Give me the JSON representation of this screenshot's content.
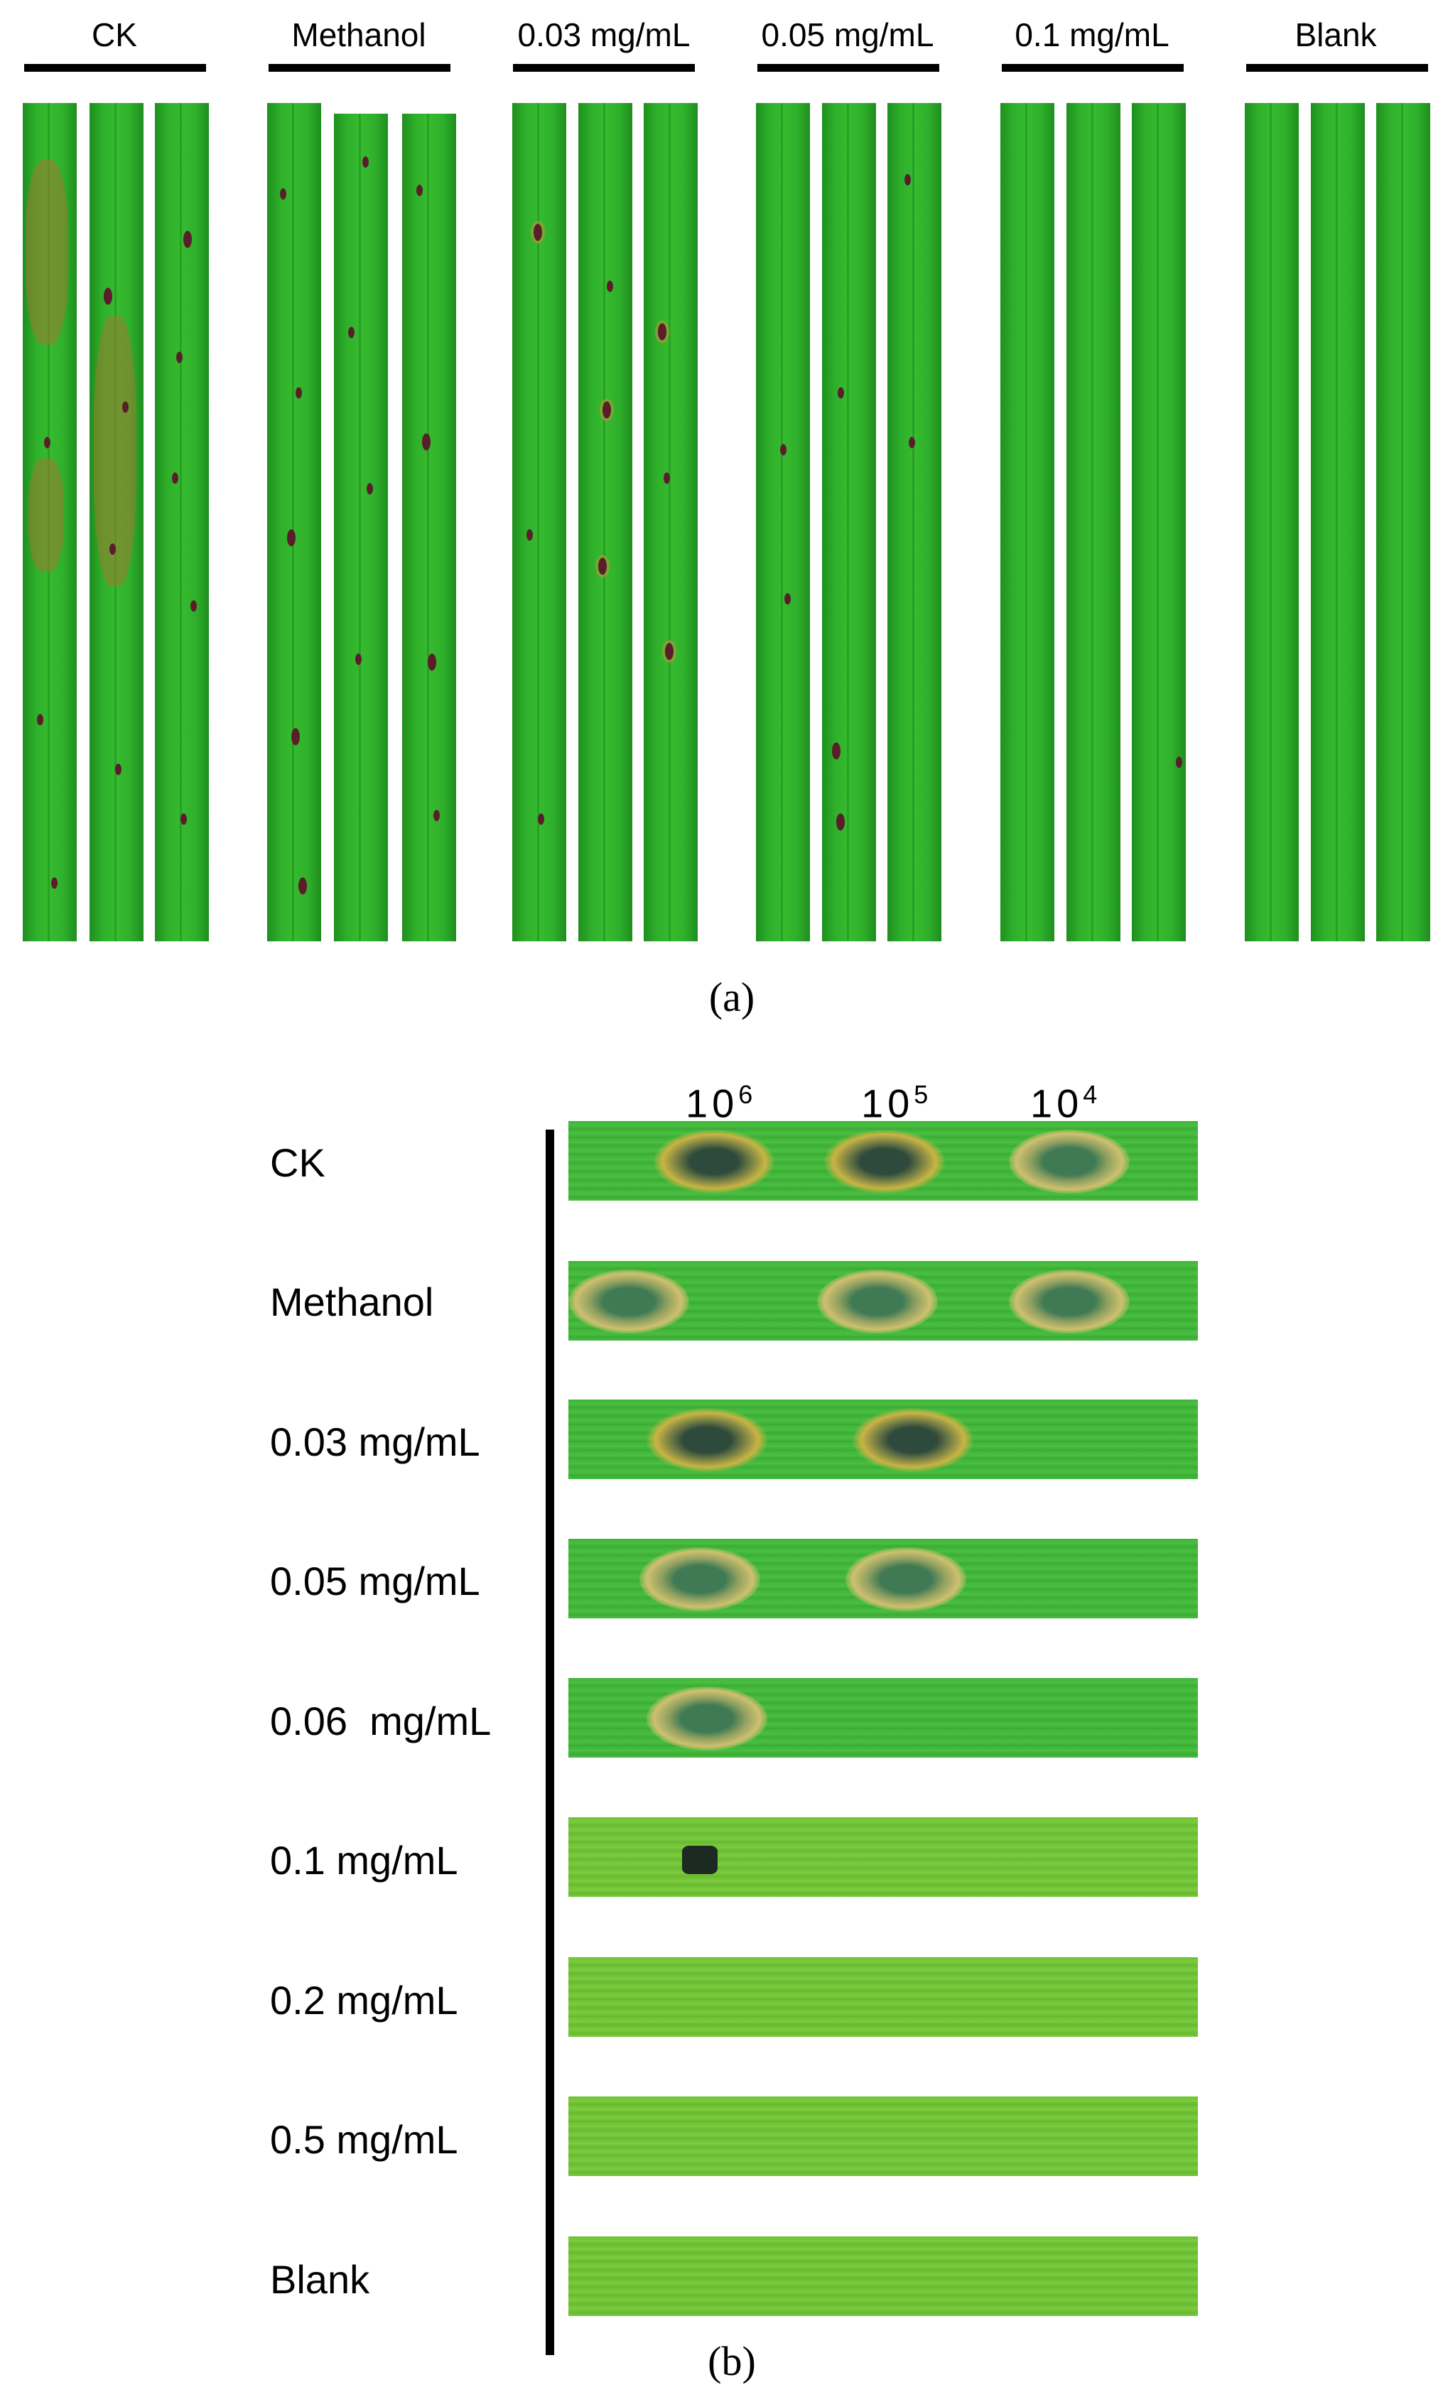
{
  "panel_a": {
    "groups": [
      "CK",
      "Methanol",
      "0.03 mg/mL",
      "0.05 mg/mL",
      "0.1 mg/mL",
      "Blank"
    ],
    "caption": "(a)"
  },
  "panel_b": {
    "concentrations": [
      {
        "base": "10",
        "exp": "6"
      },
      {
        "base": "10",
        "exp": "5"
      },
      {
        "base": "10",
        "exp": "4"
      }
    ],
    "rows": [
      "CK",
      "Methanol",
      "0.03 mg/mL",
      "0.05 mg/mL",
      "0.06  mg/mL",
      "0.1 mg/mL",
      "0.2 mg/mL",
      "0.5 mg/mL",
      "Blank"
    ],
    "caption": "(b)"
  }
}
